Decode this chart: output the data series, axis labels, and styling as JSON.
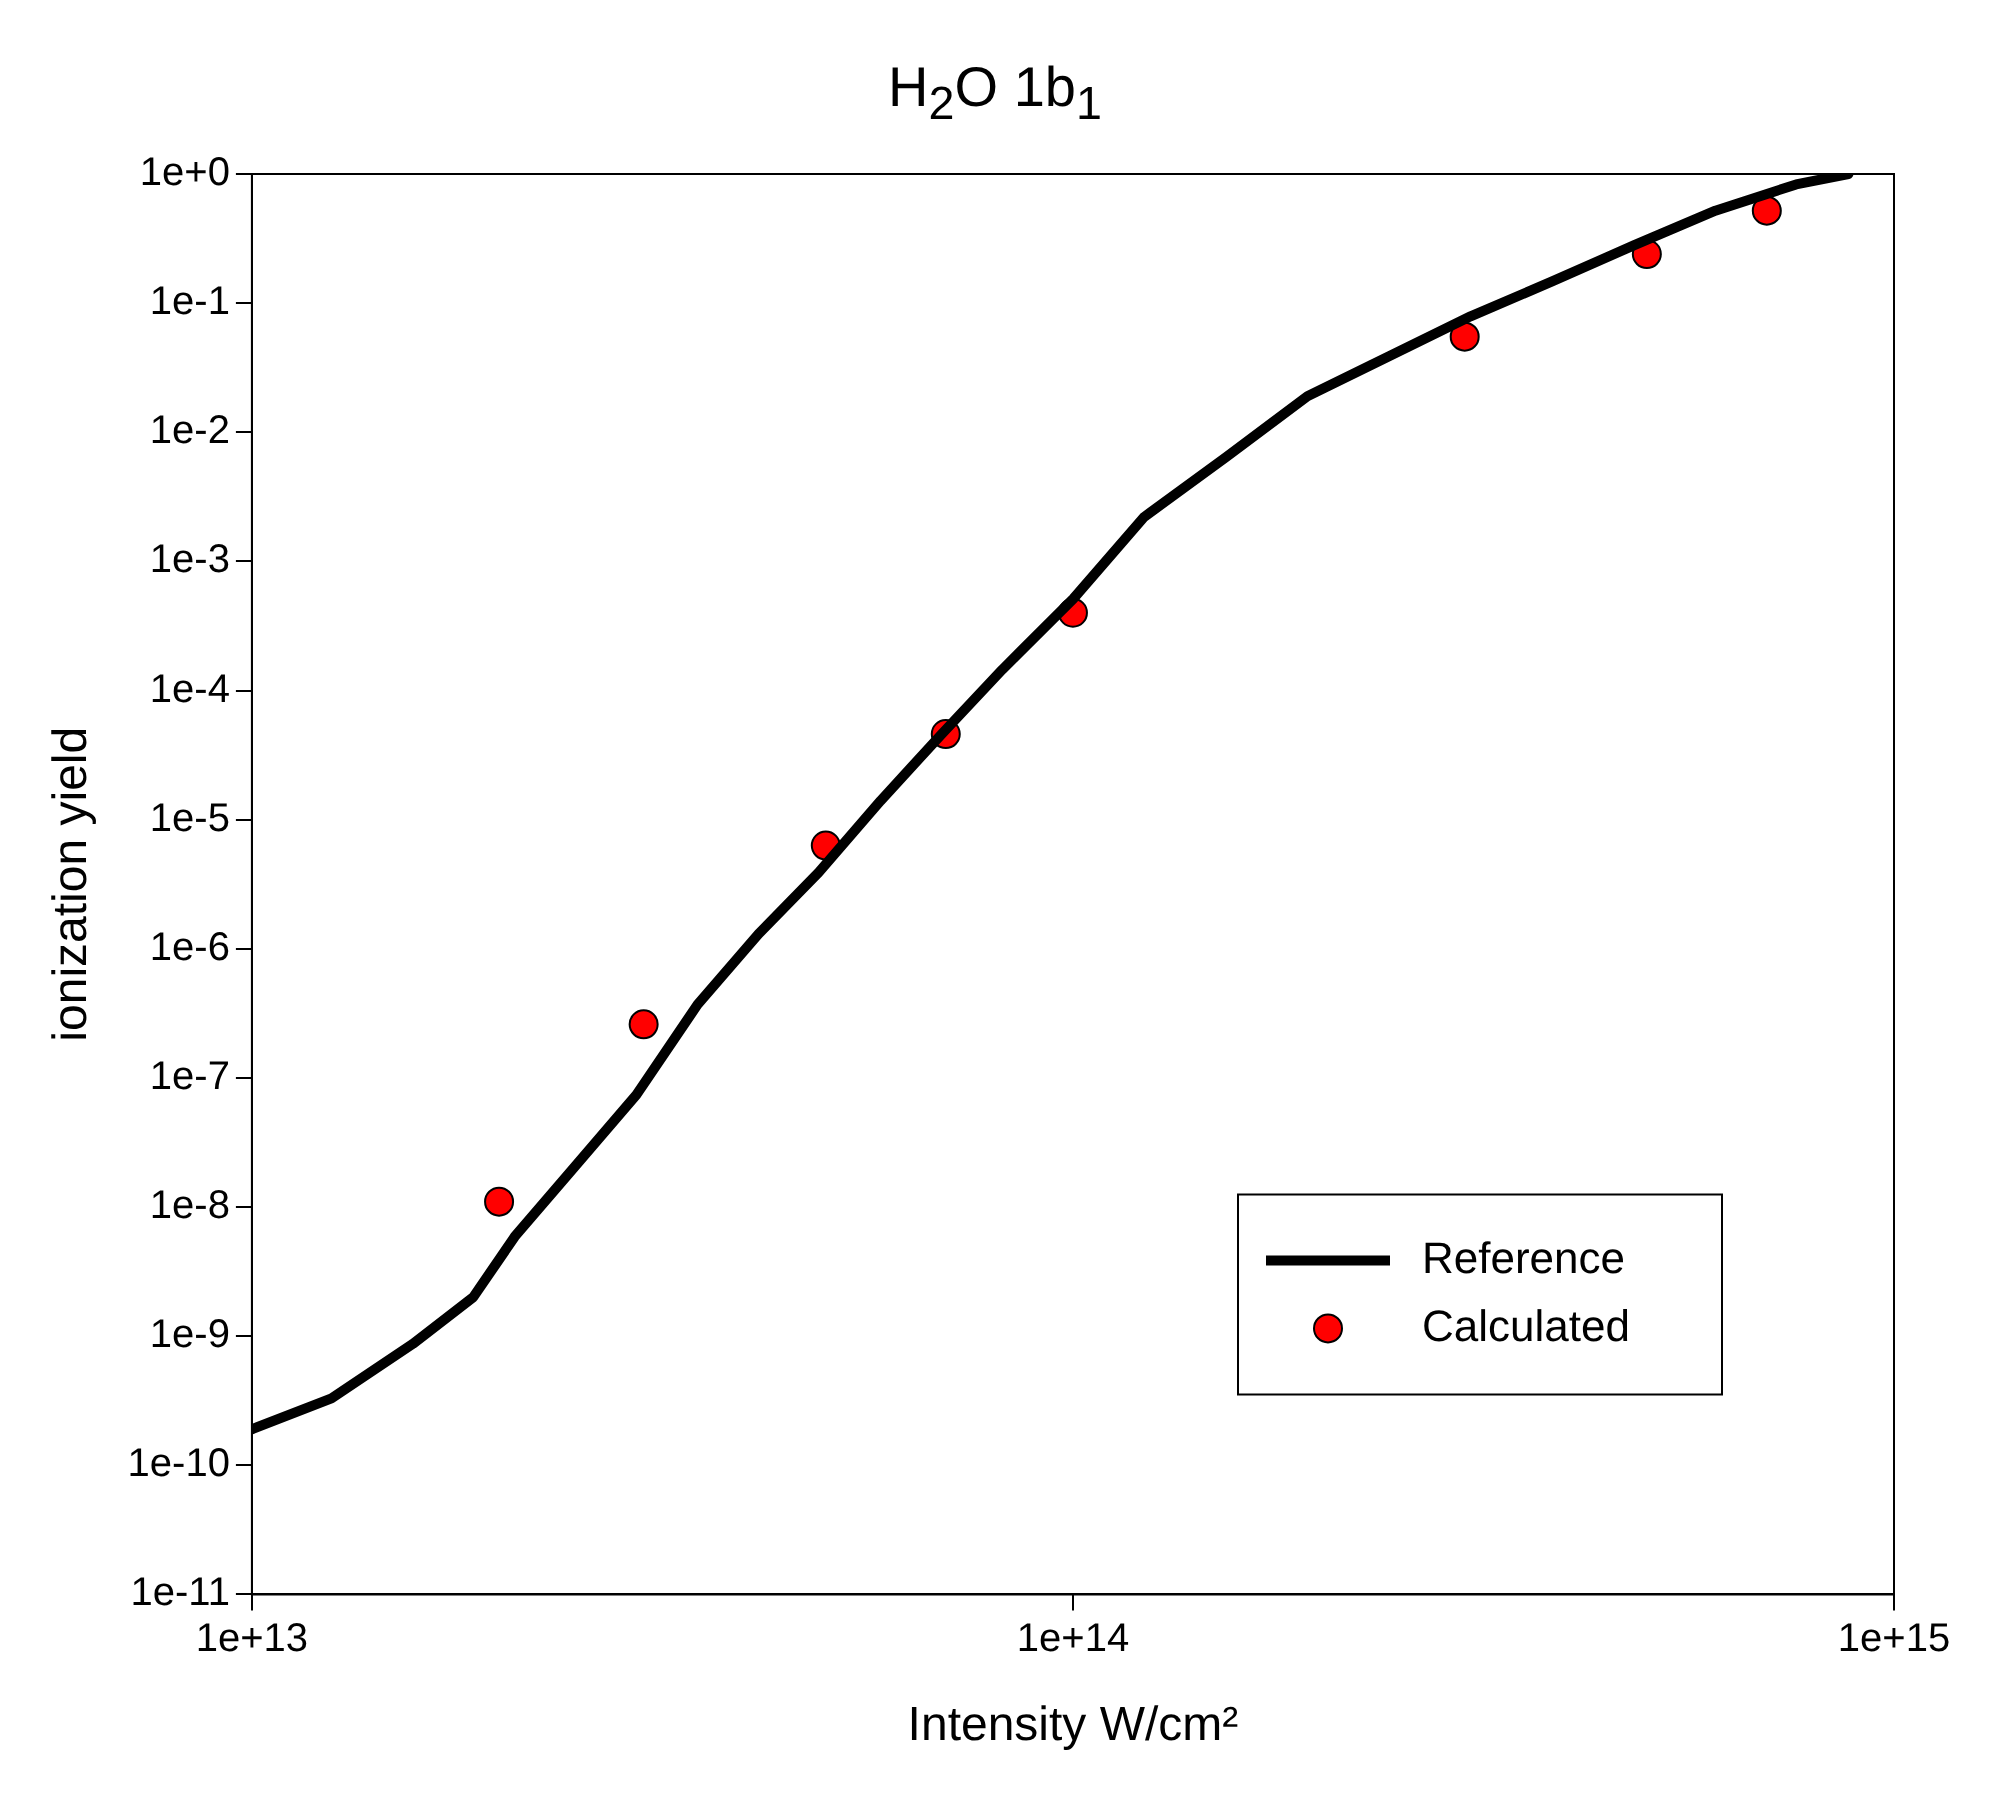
{
  "chart_data": {
    "type": "line",
    "title": "H$_{2}$O 1b$_{1}$",
    "xlabel": "Intensity W/cm²",
    "ylabel": "ionization yield",
    "log": "xy",
    "legend": "bottom right",
    "grid": false,
    "xlim": [
      10000000000000.0,
      1000000000000000.0
    ],
    "xticks": [
      {
        "value": 10000000000000.0,
        "label": "1e+13"
      },
      {
        "value": 100000000000000.0,
        "label": "1e+14"
      },
      {
        "value": 1000000000000000.0,
        "label": "1e+15"
      }
    ],
    "ylim": [
      1e-11,
      1
    ],
    "yticks": [
      {
        "value": 1e-11,
        "label": "1e-11"
      },
      {
        "value": 1e-10,
        "label": "1e-10"
      },
      {
        "value": 1e-09,
        "label": "1e-9"
      },
      {
        "value": 1e-08,
        "label": "1e-8"
      },
      {
        "value": 1e-07,
        "label": "1e-7"
      },
      {
        "value": 1e-06,
        "label": "1e-6"
      },
      {
        "value": 1e-05,
        "label": "1e-5"
      },
      {
        "value": 0.0001,
        "label": "1e-4"
      },
      {
        "value": 0.001,
        "label": "1e-3"
      },
      {
        "value": 0.01,
        "label": "1e-2"
      },
      {
        "value": 0.1,
        "label": "1e-1"
      },
      {
        "value": 1,
        "label": "1e+0"
      }
    ],
    "series": [
      {
        "name": "Reference",
        "color": "#000000",
        "marker": "none",
        "x": [
          10000000000000.0,
          12500000000000.0,
          15700000000000.0,
          18600000000000.0,
          20900000000000.0,
          24800000000000.0,
          29400000000000.0,
          34900000000000.0,
          41400000000000.0,
          49000000000000.0,
          58300000000000.0,
          69200000000000.0,
          82000000000000.0,
          100000000000000.0,
          122000000000000.0,
          154000000000000.0,
          193000000000000.0,
          243000000000000.0,
          305000000000000.0,
          384000000000000.0,
          482000000000000.0,
          606000000000000.0,
          760000000000000.0,
          880000000000000.0
        ],
        "values": [
          1.9e-10,
          3.3e-10,
          8.7e-10,
          2e-09,
          5.9e-09,
          2.1e-08,
          7.4e-08,
          3.7e-07,
          1.3e-06,
          3.9e-06,
          1.4e-05,
          4.6e-05,
          0.000145,
          0.00051,
          0.0022,
          0.0065,
          0.019,
          0.039,
          0.079,
          0.148,
          0.28,
          0.52,
          0.83,
          1.0
        ]
      },
      {
        "name": "Calculated",
        "type": "scatter",
        "color": "#ff0000",
        "marker": "circle",
        "x": [
          20000000000000.0,
          30000000000000.0,
          50000000000000.0,
          70000000000000.0,
          100000000000000.0,
          300000000000000.0,
          500000000000000.0,
          700000000000000.0
        ],
        "values": [
          1.1e-08,
          2.6e-07,
          6.3e-06,
          4.6e-05,
          0.0004,
          0.055,
          0.24,
          0.52
        ]
      }
    ]
  }
}
